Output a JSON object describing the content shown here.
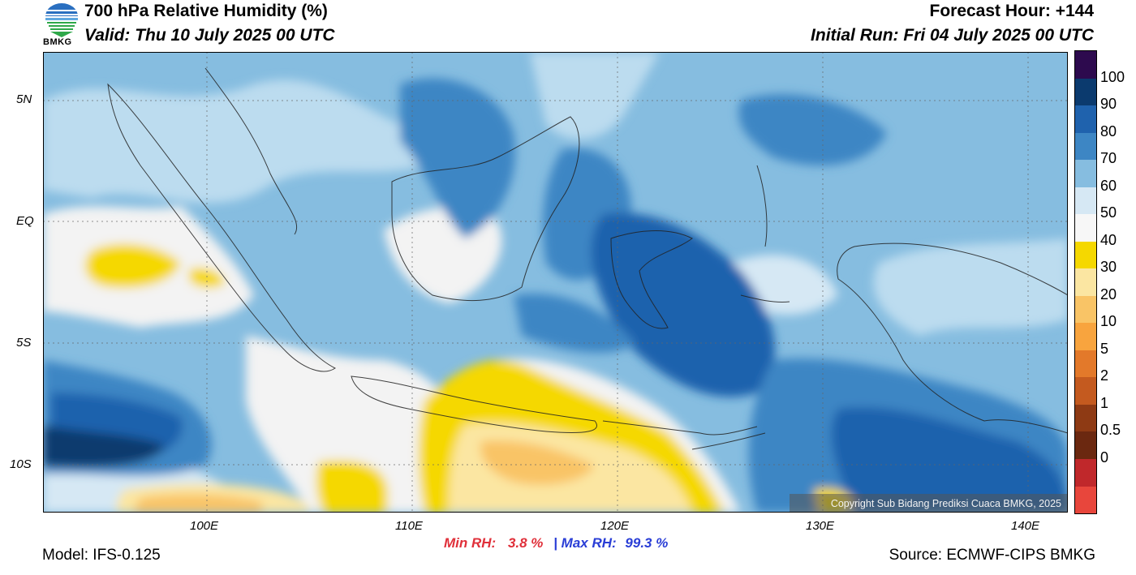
{
  "header": {
    "title": "700 hPa Relative Humidity (%)",
    "valid": "Valid: Thu 10 July 2025 00 UTC",
    "forecast_hour": "Forecast Hour: +144",
    "initial_run": "Initial Run: Fri 04 July 2025 00 UTC",
    "logo_text": "BMKG"
  },
  "axes": {
    "lat_labels": [
      "5N",
      "EQ",
      "5S",
      "10S"
    ],
    "lon_labels": [
      "100E",
      "110E",
      "120E",
      "130E",
      "140E"
    ]
  },
  "colorbar": {
    "labels": [
      "100",
      "90",
      "80",
      "70",
      "60",
      "50",
      "40",
      "30",
      "20",
      "10",
      "5",
      "2",
      "1",
      "0.5",
      "0"
    ],
    "colors": [
      "#2d0a4e",
      "#0b3a6e",
      "#1f62ad",
      "#3d86c4",
      "#86bde0",
      "#d6e8f4",
      "#f7f7f7",
      "#f5d800",
      "#fbe6a2",
      "#f9c466",
      "#f8a43e",
      "#e3792a",
      "#c45a1f",
      "#8e3a14",
      "#6b2810",
      "#c0282b",
      "#e8463c"
    ]
  },
  "stats": {
    "min_label": "Min RH:",
    "min_value": "3.8 %",
    "separator": "|",
    "max_label": "Max RH:",
    "max_value": "99.3 %",
    "min_color": "#e0303a",
    "max_color": "#2a3ed6"
  },
  "footer": {
    "model": "Model: IFS-0.125",
    "source": "Source: ECMWF-CIPS BMKG",
    "copyright": "Copyright Sub Bidang Prediksi Cuaca BMKG, 2025"
  }
}
